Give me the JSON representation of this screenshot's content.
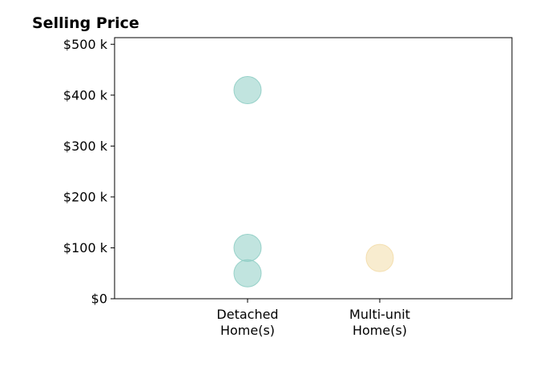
{
  "chart_data": {
    "type": "scatter",
    "title": "Selling Price",
    "xlabel": "",
    "ylabel": "",
    "categories": [
      [
        "Detached",
        "Home(s)"
      ],
      [
        "Multi-unit",
        "Home(s)"
      ]
    ],
    "ylim": [
      0,
      513000
    ],
    "yticks": [
      {
        "value": 0,
        "label": "$0"
      },
      {
        "value": 100000,
        "label": "$100 k"
      },
      {
        "value": 200000,
        "label": "$200 k"
      },
      {
        "value": 300000,
        "label": "$300 k"
      },
      {
        "value": 400000,
        "label": "$400 k"
      },
      {
        "value": 500000,
        "label": "$500 k"
      }
    ],
    "grid": false,
    "points": [
      {
        "category": 0,
        "y": 410000,
        "color": "#8ECDC4"
      },
      {
        "category": 0,
        "y": 100000,
        "color": "#8ECDC4"
      },
      {
        "category": 0,
        "y": 50000,
        "color": "#8ECDC4"
      },
      {
        "category": 1,
        "y": 80000,
        "color": "#F3DCA8"
      }
    ]
  }
}
